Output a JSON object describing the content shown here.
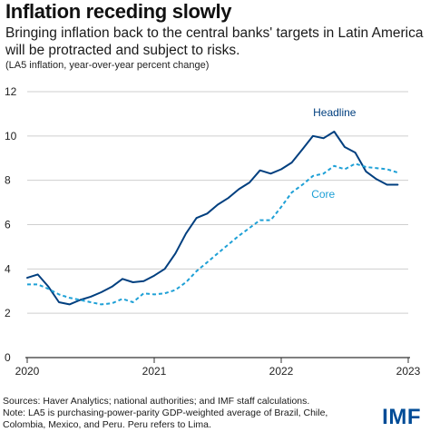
{
  "header": {
    "title": "Inflation receding slowly",
    "subtitle": "Bringing inflation back to the central banks' targets in Latin America will be protracted and subject to risks.",
    "note": "(LA5 inflation, year-over-year percent change)"
  },
  "footer": {
    "source": "Sources: Haver Analytics; national authorities; and IMF staff calculations.",
    "note": "Note: LA5 is purchasing-power-parity GDP-weighted average of Brazil, Chile, Colombia, Mexico, and Peru. Peru refers to Lima.",
    "logo": "IMF"
  },
  "colors": {
    "headline": "#003f7f",
    "core": "#1ea0d6",
    "grid": "#cfcfcf",
    "axis": "#333333",
    "logo": "#004c97"
  },
  "chart_data": {
    "type": "line",
    "title": "Inflation receding slowly",
    "ylim": [
      0,
      12
    ],
    "xlim": [
      2020,
      2023
    ],
    "yticks": [
      "0",
      "2",
      "4",
      "6",
      "8",
      "10",
      "12"
    ],
    "xticks": [
      "2020",
      "2021",
      "2022",
      "2023"
    ],
    "grid": "horizontal",
    "series": [
      {
        "name": "Headline",
        "color": "#003f7f",
        "style": "solid",
        "x": [
          2020.0,
          2020.083,
          2020.167,
          2020.25,
          2020.333,
          2020.417,
          2020.5,
          2020.583,
          2020.667,
          2020.75,
          2020.833,
          2020.917,
          2021.0,
          2021.083,
          2021.167,
          2021.25,
          2021.333,
          2021.417,
          2021.5,
          2021.583,
          2021.667,
          2021.75,
          2021.833,
          2021.917,
          2022.0,
          2022.083,
          2022.167,
          2022.25,
          2022.333,
          2022.417,
          2022.5,
          2022.583,
          2022.667,
          2022.75,
          2022.833,
          2022.917
        ],
        "values": [
          3.6,
          3.75,
          3.2,
          2.5,
          2.4,
          2.6,
          2.75,
          2.95,
          3.2,
          3.55,
          3.4,
          3.45,
          3.7,
          4.0,
          4.7,
          5.6,
          6.3,
          6.5,
          6.9,
          7.2,
          7.6,
          7.9,
          8.45,
          8.3,
          8.5,
          8.8,
          9.4,
          10.0,
          9.9,
          10.2,
          9.5,
          9.25,
          8.4,
          8.05,
          7.8,
          7.8
        ]
      },
      {
        "name": "Core",
        "color": "#1ea0d6",
        "style": "dashed",
        "x": [
          2020.0,
          2020.083,
          2020.167,
          2020.25,
          2020.333,
          2020.417,
          2020.5,
          2020.583,
          2020.667,
          2020.75,
          2020.833,
          2020.917,
          2021.0,
          2021.083,
          2021.167,
          2021.25,
          2021.333,
          2021.417,
          2021.5,
          2021.583,
          2021.667,
          2021.75,
          2021.833,
          2021.917,
          2022.0,
          2022.083,
          2022.167,
          2022.25,
          2022.333,
          2022.417,
          2022.5,
          2022.583,
          2022.667,
          2022.75,
          2022.833,
          2022.917
        ],
        "values": [
          3.3,
          3.3,
          3.1,
          2.85,
          2.7,
          2.6,
          2.5,
          2.4,
          2.45,
          2.65,
          2.5,
          2.9,
          2.85,
          2.9,
          3.05,
          3.4,
          3.9,
          4.3,
          4.7,
          5.1,
          5.5,
          5.85,
          6.2,
          6.2,
          6.8,
          7.45,
          7.8,
          8.2,
          8.3,
          8.65,
          8.5,
          8.75,
          8.6,
          8.55,
          8.5,
          8.35
        ]
      }
    ],
    "annotations": [
      {
        "text": "Headline",
        "series": "Headline",
        "x": 2022.42,
        "y": 10.9,
        "color": "#003f7f"
      },
      {
        "text": "Core",
        "series": "Core",
        "x": 2022.33,
        "y": 7.2,
        "color": "#1ea0d6"
      }
    ]
  }
}
